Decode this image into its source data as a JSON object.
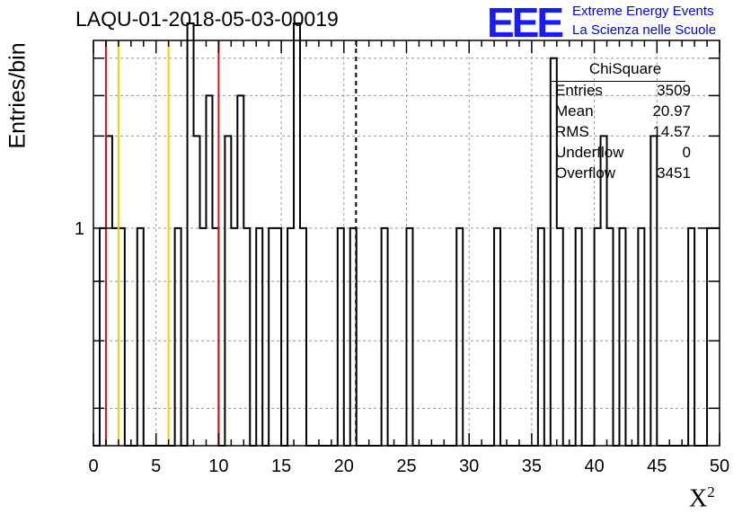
{
  "chart_data": {
    "type": "histogram",
    "title": "LAQU-01-2018-05-03-00019",
    "xlabel": "X",
    "xlabel_superscript": "2",
    "ylabel": "Entries/bin",
    "xlim": [
      0,
      50
    ],
    "ylim": [
      0.65,
      1.45
    ],
    "y_scale": "log",
    "bin_width": 0.5,
    "x_ticks": [
      0,
      5,
      10,
      15,
      20,
      25,
      30,
      35,
      40,
      45,
      50
    ],
    "x_tick_labels": [
      "0",
      "5",
      "10",
      "15",
      "20",
      "25",
      "30",
      "35",
      "40",
      "45",
      "50"
    ],
    "y_tick_label": "1",
    "grid": true,
    "bins": [
      {
        "x": 0.5,
        "v": 1
      },
      {
        "x": 1.0,
        "v": 1.2
      },
      {
        "x": 1.5,
        "v": 1
      },
      {
        "x": 2.0,
        "v": 1
      },
      {
        "x": 3.5,
        "v": 1
      },
      {
        "x": 6.5,
        "v": 1
      },
      {
        "x": 7.5,
        "v": 1.5
      },
      {
        "x": 8.0,
        "v": 1.2
      },
      {
        "x": 8.5,
        "v": 1
      },
      {
        "x": 9.0,
        "v": 1.3
      },
      {
        "x": 9.5,
        "v": 1
      },
      {
        "x": 10.5,
        "v": 1.2
      },
      {
        "x": 11.0,
        "v": 1
      },
      {
        "x": 11.5,
        "v": 1.3
      },
      {
        "x": 12.0,
        "v": 1
      },
      {
        "x": 13.0,
        "v": 1
      },
      {
        "x": 14.0,
        "v": 1
      },
      {
        "x": 14.5,
        "v": 1
      },
      {
        "x": 15.5,
        "v": 1
      },
      {
        "x": 16.0,
        "v": 1.5
      },
      {
        "x": 16.5,
        "v": 1
      },
      {
        "x": 19.5,
        "v": 1
      },
      {
        "x": 20.5,
        "v": 1
      },
      {
        "x": 23.0,
        "v": 1
      },
      {
        "x": 25.0,
        "v": 1
      },
      {
        "x": 29.0,
        "v": 1
      },
      {
        "x": 32.0,
        "v": 1
      },
      {
        "x": 35.5,
        "v": 1
      },
      {
        "x": 36.5,
        "v": 1.4
      },
      {
        "x": 37.0,
        "v": 1
      },
      {
        "x": 38.5,
        "v": 1
      },
      {
        "x": 40.0,
        "v": 1
      },
      {
        "x": 40.5,
        "v": 1.2
      },
      {
        "x": 41.0,
        "v": 1
      },
      {
        "x": 42.0,
        "v": 1
      },
      {
        "x": 43.5,
        "v": 1
      },
      {
        "x": 44.5,
        "v": 1.2
      },
      {
        "x": 47.5,
        "v": 1
      },
      {
        "x": 49.0,
        "v": 1
      },
      {
        "x": 49.5,
        "v": 1
      }
    ],
    "vertical_lines": [
      {
        "x": 1.0,
        "color": "#dd1111",
        "style": "solid"
      },
      {
        "x": 2.0,
        "color": "#ffcc00",
        "style": "solid"
      },
      {
        "x": 6.0,
        "color": "#ffcc00",
        "style": "solid"
      },
      {
        "x": 10.0,
        "color": "#dd1111",
        "style": "solid"
      },
      {
        "x": 20.97,
        "color": "#000000",
        "style": "dashed"
      }
    ]
  },
  "logo": {
    "mark": "EEE",
    "line1": "Extreme Energy Events",
    "line2": "La Scienza nelle Scuole",
    "color": "#1a1aff"
  },
  "stats": {
    "title": "ChiSquare",
    "rows": [
      {
        "label": "Entries",
        "value": "3509"
      },
      {
        "label": "Mean",
        "value": "20.97"
      },
      {
        "label": "RMS",
        "value": "14.57"
      },
      {
        "label": "Underflow",
        "value": "0"
      },
      {
        "label": "Overflow",
        "value": "3451"
      }
    ]
  }
}
